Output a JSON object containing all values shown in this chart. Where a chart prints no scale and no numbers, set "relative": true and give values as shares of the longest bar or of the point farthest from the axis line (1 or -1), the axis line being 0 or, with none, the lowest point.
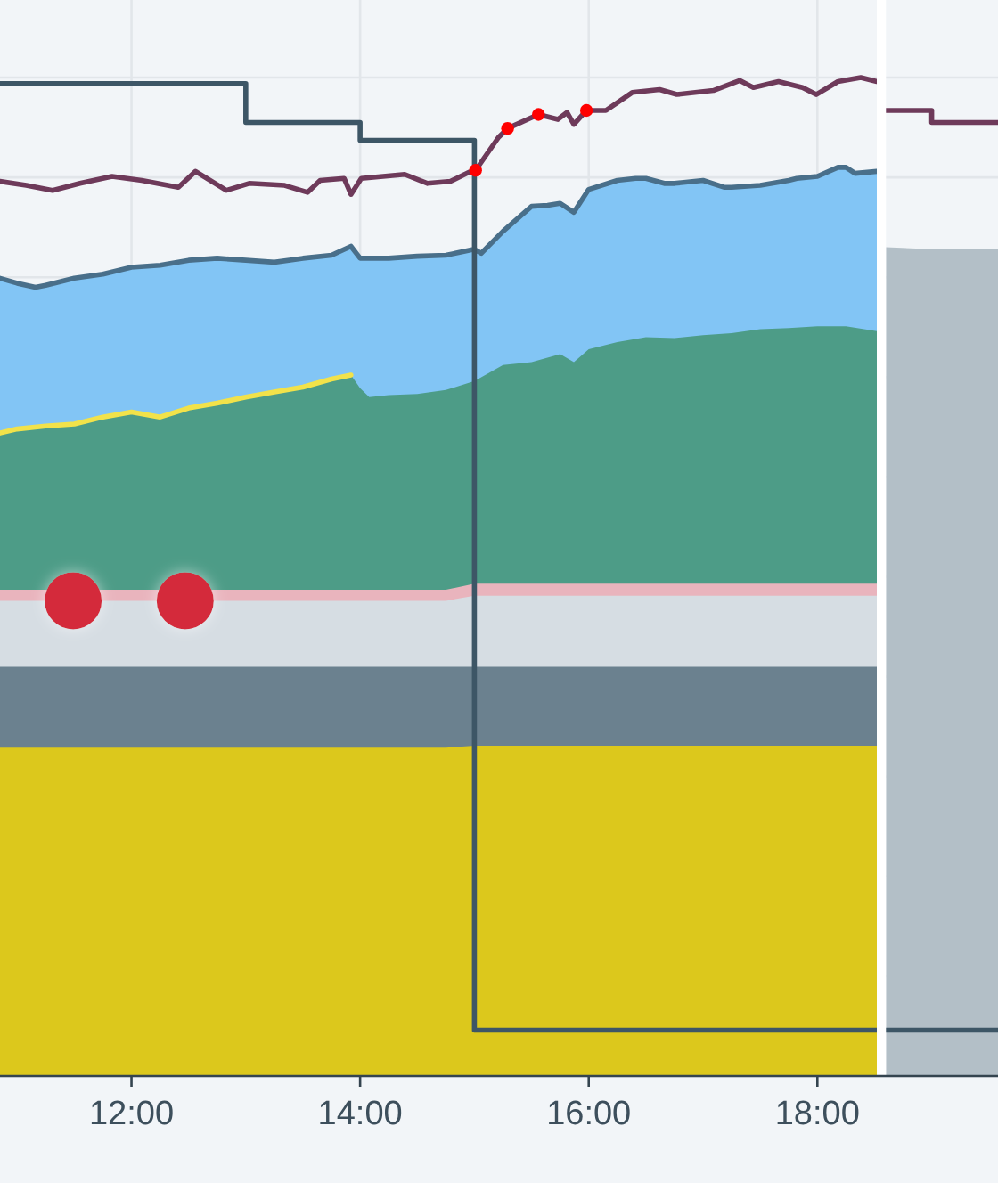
{
  "chart_data": {
    "type": "area",
    "relative": true,
    "grid": true,
    "tick_labels": "x",
    "xlim": [
      10.85,
      19.58
    ],
    "xticks": [
      {
        "value": 12,
        "label": "12:00"
      },
      {
        "value": 14,
        "label": "14:00"
      },
      {
        "value": 16,
        "label": "16:00"
      },
      {
        "value": 18,
        "label": "18:00"
      }
    ],
    "series": [
      {
        "color": "#82c5f5",
        "line_style": "solid",
        "x": [
          10.85,
          11,
          11.16,
          11.25,
          11.5,
          11.75,
          12,
          12.25,
          12.5,
          12.75,
          13,
          13.25,
          13.5,
          13.75,
          13.92,
          14,
          14.08,
          14.25,
          14.5,
          14.75,
          15,
          15.06,
          15.25,
          15.5,
          15.64,
          15.75,
          15.87,
          16,
          16.25,
          16.41,
          16.5,
          16.66,
          16.75,
          17,
          17.19,
          17.25,
          17.5,
          17.75,
          17.82,
          18,
          18.18,
          18.25,
          18.33,
          18.52
        ],
        "values": [
          0.799,
          0.794,
          0.79,
          0.792,
          0.799,
          0.803,
          0.81,
          0.812,
          0.817,
          0.819,
          0.817,
          0.815,
          0.819,
          0.822,
          0.831,
          0.819,
          0.819,
          0.819,
          0.821,
          0.822,
          0.828,
          0.824,
          0.846,
          0.871,
          0.872,
          0.874,
          0.865,
          0.888,
          0.897,
          0.899,
          0.899,
          0.894,
          0.894,
          0.897,
          0.89,
          0.89,
          0.892,
          0.897,
          0.899,
          0.901,
          0.91,
          0.91,
          0.904,
          0.906
        ]
      },
      {
        "color": "#4d9c87",
        "x": [
          10.85,
          11,
          11.25,
          11.5,
          11.75,
          12,
          12.25,
          12.5,
          12.75,
          13,
          13.25,
          13.5,
          13.75,
          13.92,
          14,
          14.08,
          14.25,
          14.5,
          14.75,
          15,
          15.25,
          15.5,
          15.75,
          15.87,
          16,
          16.25,
          16.5,
          16.75,
          17,
          17.25,
          17.5,
          17.75,
          18,
          18.25,
          18.52
        ],
        "values": [
          0.644,
          0.648,
          0.651,
          0.653,
          0.66,
          0.665,
          0.66,
          0.669,
          0.674,
          0.68,
          0.685,
          0.69,
          0.698,
          0.702,
          0.689,
          0.68,
          0.682,
          0.683,
          0.687,
          0.696,
          0.712,
          0.715,
          0.723,
          0.715,
          0.728,
          0.735,
          0.74,
          0.739,
          0.742,
          0.744,
          0.748,
          0.749,
          0.751,
          0.751,
          0.746
        ]
      },
      {
        "color": "#e9b4bd",
        "x": [
          10.85,
          14.75,
          15,
          18.52
        ],
        "values": [
          0.487,
          0.487,
          0.493,
          0.493
        ]
      },
      {
        "color": "#d6dde3",
        "x": [
          10.85,
          14.75,
          15,
          18.52
        ],
        "values": [
          0.476,
          0.476,
          0.481,
          0.481
        ]
      },
      {
        "color": "#6b818f",
        "x": [
          10.85,
          18.52
        ],
        "values": [
          0.41,
          0.41
        ]
      },
      {
        "color": "#dcc81c",
        "x": [
          10.85,
          14.75,
          15,
          18.52
        ],
        "values": [
          0.329,
          0.329,
          0.331,
          0.331
        ]
      },
      {
        "color": "#b3bfc7",
        "x": [
          18.6,
          19.0,
          19.58
        ],
        "values": [
          0.83,
          0.828,
          0.828
        ]
      },
      {
        "type": "line",
        "color": "#f2e24a",
        "x": [
          10.85,
          11,
          11.25,
          11.5,
          11.75,
          12,
          12.25,
          12.5,
          12.75,
          13,
          13.25,
          13.5,
          13.75,
          13.92
        ],
        "values": [
          0.644,
          0.648,
          0.651,
          0.653,
          0.66,
          0.665,
          0.66,
          0.669,
          0.674,
          0.68,
          0.685,
          0.69,
          0.698,
          0.702
        ]
      },
      {
        "type": "line",
        "color": "#6e3a5a",
        "x": [
          10.85,
          11.08,
          11.31,
          11.55,
          11.83,
          12.09,
          12.41,
          12.56,
          12.83,
          13.03,
          13.34,
          13.54,
          13.65,
          13.86,
          13.92,
          14.01,
          14.39,
          14.59,
          14.79,
          14.95,
          15.01,
          15.21,
          15.29,
          15.56,
          15.73,
          15.81,
          15.87,
          15.98,
          16.15,
          16.38,
          16.62,
          16.77,
          17.09,
          17.32,
          17.44,
          17.66,
          17.87,
          17.99,
          18.18,
          18.38,
          18.52
        ],
        "values": [
          0.896,
          0.892,
          0.887,
          0.894,
          0.901,
          0.897,
          0.89,
          0.906,
          0.887,
          0.894,
          0.892,
          0.885,
          0.897,
          0.899,
          0.883,
          0.899,
          0.903,
          0.894,
          0.896,
          0.905,
          0.907,
          0.94,
          0.949,
          0.963,
          0.958,
          0.965,
          0.953,
          0.967,
          0.967,
          0.985,
          0.988,
          0.983,
          0.987,
          0.997,
          0.99,
          0.996,
          0.99,
          0.983,
          0.996,
          1.0,
          0.996
        ]
      },
      {
        "type": "step",
        "color": "#6e3a5a",
        "x": [
          18.6,
          19.0,
          19.58
        ],
        "values": [
          0.967,
          0.955,
          0.955
        ]
      },
      {
        "type": "step",
        "color": "#3d5666",
        "x": [
          10.85,
          13,
          14,
          15,
          19.58
        ],
        "values": [
          0.994,
          0.955,
          0.937,
          0.046,
          0.046
        ]
      },
      {
        "type": "bubble",
        "color": "#d42a3a",
        "marker": "circle",
        "x": [
          11.49,
          12.47
        ],
        "values": [
          0.476,
          0.476
        ],
        "sizes": [
          1,
          1
        ]
      },
      {
        "type": "scatter",
        "color": "#ff0000",
        "marker": "circle",
        "x": [
          15.01,
          15.29,
          15.56,
          15.98
        ],
        "values": [
          0.907,
          0.949,
          0.963,
          0.967
        ]
      }
    ],
    "bands": [
      {
        "axis": "x",
        "from": 18.52,
        "to": 18.6,
        "color": "#ffffff"
      }
    ]
  }
}
